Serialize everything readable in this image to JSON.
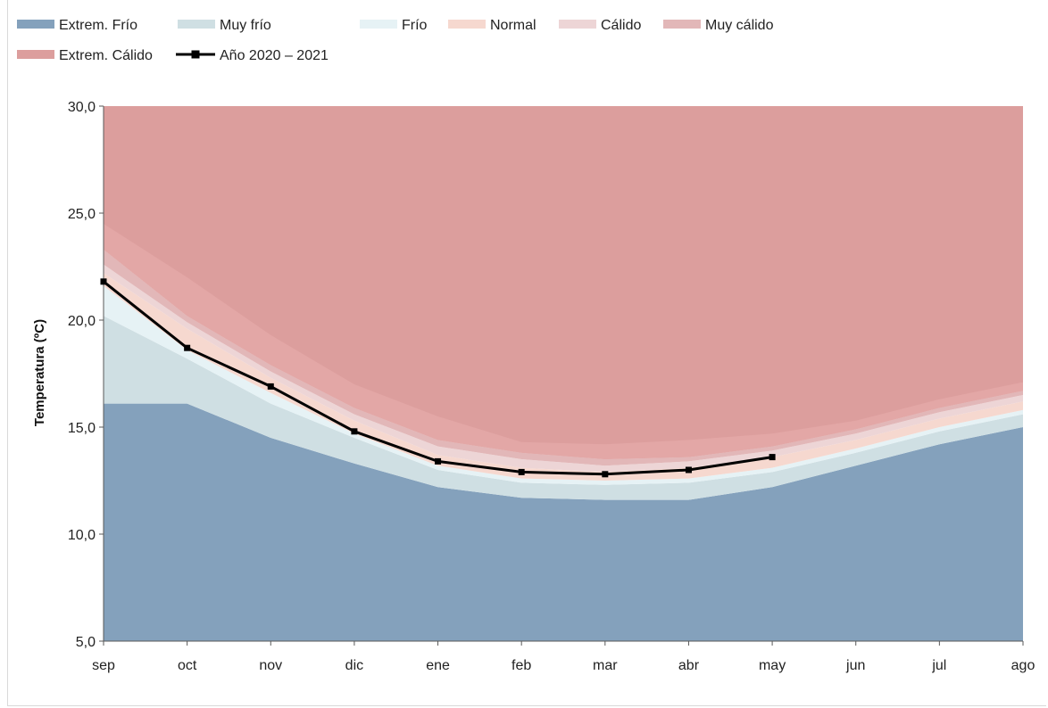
{
  "chart_data": {
    "type": "area",
    "title": "",
    "xlabel": "",
    "ylabel": "Temperatura (ºC)",
    "ylim": [
      5,
      30
    ],
    "yticks": [
      "5,0",
      "10,0",
      "15,0",
      "20,0",
      "25,0",
      "30,0"
    ],
    "categories": [
      "sep",
      "oct",
      "nov",
      "dic",
      "ene",
      "feb",
      "mar",
      "abr",
      "may",
      "jun",
      "jul",
      "ago"
    ],
    "legend_position": "top",
    "bands": [
      {
        "name": "Extrem. Frío",
        "color": "#84a1bc",
        "upper": [
          16.1,
          16.1,
          14.5,
          13.3,
          12.2,
          11.7,
          11.6,
          11.6,
          12.2,
          13.2,
          14.2,
          15.0
        ]
      },
      {
        "name": "Muy frío",
        "color": "#cfdfe3",
        "upper": [
          20.2,
          18.2,
          16.1,
          14.5,
          13.0,
          12.4,
          12.3,
          12.4,
          12.9,
          13.8,
          14.8,
          15.6
        ]
      },
      {
        "name": "Frío",
        "color": "#e6f2f5",
        "upper": [
          21.6,
          18.6,
          16.6,
          14.7,
          13.2,
          12.6,
          12.5,
          12.6,
          13.1,
          14.0,
          15.0,
          15.8
        ]
      },
      {
        "name": "Normal",
        "color": "#f6d8cf",
        "upper": [
          22.2,
          19.6,
          17.3,
          15.3,
          13.7,
          13.1,
          12.9,
          13.1,
          13.6,
          14.4,
          15.4,
          16.2
        ]
      },
      {
        "name": "Cálido",
        "color": "#edd5d6",
        "upper": [
          22.6,
          19.9,
          17.6,
          15.6,
          14.1,
          13.5,
          13.2,
          13.4,
          13.9,
          14.7,
          15.7,
          16.5
        ]
      },
      {
        "name": "Muy cálido",
        "color": "#e2b7b8",
        "upper": [
          23.3,
          20.2,
          17.9,
          15.9,
          14.4,
          13.8,
          13.5,
          13.6,
          14.1,
          14.9,
          15.9,
          16.7
        ]
      },
      {
        "name": "Extrem. Cálido",
        "color": "#dc9e9d",
        "upper": [
          30,
          30,
          30,
          30,
          30,
          30,
          30,
          30,
          30,
          30,
          30,
          30
        ]
      }
    ],
    "outer_shade": {
      "color": "#e3a7a6",
      "upper": [
        24.5,
        22.0,
        19.3,
        17.0,
        15.5,
        14.3,
        14.2,
        14.4,
        14.7,
        15.3,
        16.3,
        17.1
      ]
    },
    "series": [
      {
        "name": "Año 2020 – 2021",
        "color": "#000000",
        "values": [
          21.8,
          18.7,
          16.9,
          14.8,
          13.4,
          12.9,
          12.8,
          13.0,
          13.6,
          null,
          null,
          null
        ]
      }
    ]
  }
}
